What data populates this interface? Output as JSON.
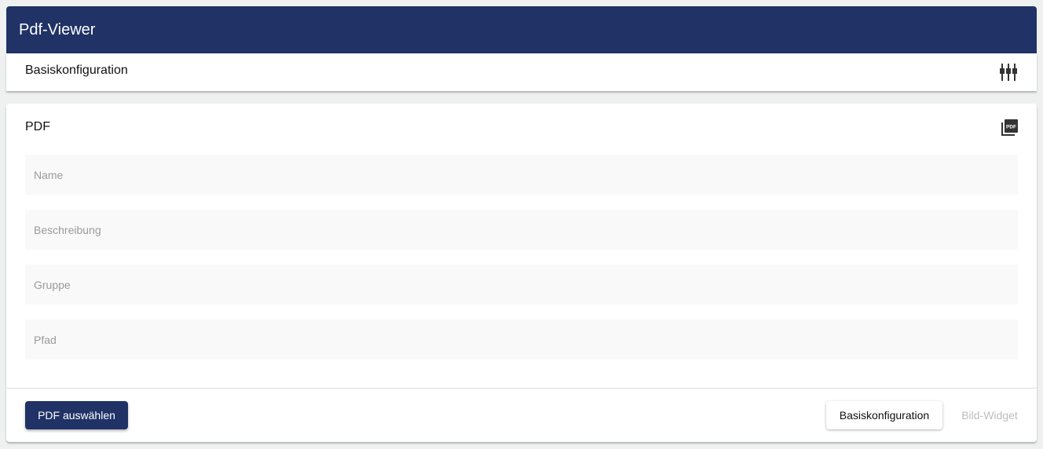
{
  "header": {
    "title": "Pdf-Viewer"
  },
  "config_bar": {
    "title": "Basiskonfiguration",
    "icon": "tune-icon"
  },
  "card": {
    "title": "PDF",
    "icon": "pdf-icon",
    "fields": [
      {
        "placeholder": "Name"
      },
      {
        "placeholder": "Beschreibung"
      },
      {
        "placeholder": "Gruppe"
      },
      {
        "placeholder": "Pfad"
      }
    ]
  },
  "footer": {
    "select_pdf": "PDF auswählen",
    "basic_config": "Basiskonfiguration",
    "image_widget": "Bild-Widget"
  },
  "colors": {
    "primary": "#203266"
  }
}
